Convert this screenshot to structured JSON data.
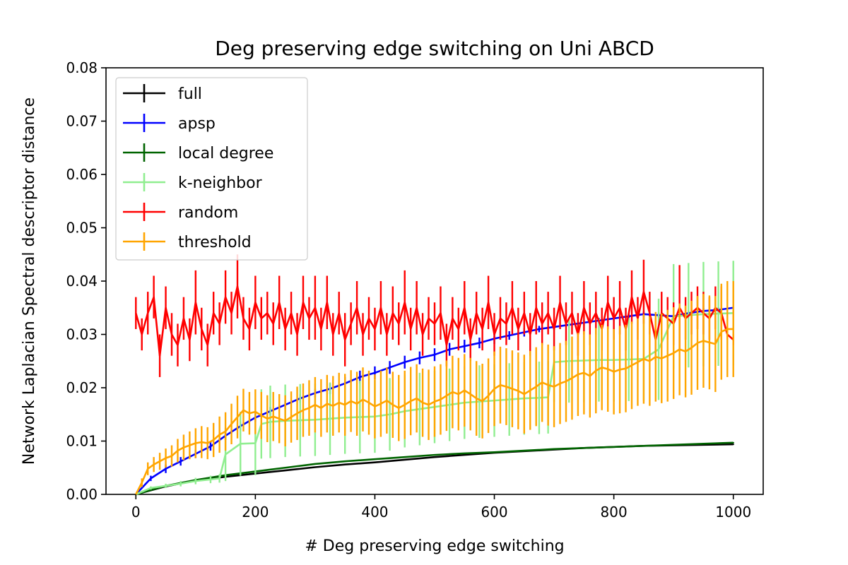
{
  "chart_data": {
    "type": "line",
    "title": "Deg preserving edge switching on Uni ABCD",
    "xlabel": "# Deg preserving edge switching",
    "ylabel": "Network Laplacian Spectral descriptor distance",
    "xlim": [
      -50,
      1050
    ],
    "ylim": [
      0,
      0.08
    ],
    "xticks": [
      0,
      200,
      400,
      600,
      800,
      1000
    ],
    "xtick_labels": [
      "0",
      "200",
      "400",
      "600",
      "800",
      "1000"
    ],
    "yticks": [
      0,
      0.01,
      0.02,
      0.03,
      0.04,
      0.05,
      0.06,
      0.07,
      0.08
    ],
    "ytick_labels": [
      "0.00",
      "0.01",
      "0.02",
      "0.03",
      "0.04",
      "0.05",
      "0.06",
      "0.07",
      "0.08"
    ],
    "grid": false,
    "legend_position": "top-left",
    "series": [
      {
        "name": "full",
        "color": "#000000",
        "x": [
          0,
          50,
          100,
          150,
          200,
          250,
          300,
          350,
          400,
          450,
          500,
          550,
          600,
          650,
          700,
          750,
          800,
          850,
          900,
          950,
          1000
        ],
        "y": [
          0.0,
          0.0015,
          0.0026,
          0.0033,
          0.0039,
          0.0045,
          0.0051,
          0.0056,
          0.006,
          0.0065,
          0.007,
          0.0074,
          0.0078,
          0.0081,
          0.0084,
          0.0087,
          0.0089,
          0.0091,
          0.0092,
          0.0093,
          0.0094
        ],
        "err": [
          0,
          0.0001,
          0.0001,
          0.0001,
          0.0001,
          0.0001,
          0.0001,
          0.0001,
          0.0001,
          0.0001,
          0.0001,
          0.0001,
          0.0001,
          0.0001,
          0.0001,
          0.0001,
          0.0001,
          0.0001,
          0.0001,
          0.0001,
          0.0001
        ]
      },
      {
        "name": "apsp",
        "color": "#0000ff",
        "x": [
          0,
          25,
          50,
          75,
          100,
          125,
          150,
          175,
          200,
          225,
          250,
          275,
          300,
          325,
          350,
          375,
          400,
          425,
          450,
          475,
          500,
          525,
          550,
          575,
          600,
          625,
          650,
          675,
          700,
          725,
          750,
          775,
          800,
          825,
          850,
          875,
          900,
          925,
          950,
          975,
          1000
        ],
        "y": [
          0.0,
          0.003,
          0.0048,
          0.0062,
          0.0076,
          0.009,
          0.011,
          0.0128,
          0.0144,
          0.0156,
          0.0168,
          0.018,
          0.019,
          0.0198,
          0.0208,
          0.022,
          0.0228,
          0.0238,
          0.0248,
          0.0256,
          0.0262,
          0.0272,
          0.0278,
          0.0284,
          0.0292,
          0.0298,
          0.0304,
          0.031,
          0.0314,
          0.0318,
          0.0322,
          0.0326,
          0.033,
          0.0334,
          0.0338,
          0.0336,
          0.0334,
          0.034,
          0.0344,
          0.0346,
          0.035
        ],
        "err": [
          0,
          0.0005,
          0.0008,
          0.0008,
          0.0008,
          0.0008,
          0.0008,
          0.0008,
          0.0008,
          0.0008,
          0.0008,
          0.0008,
          0.0008,
          0.001,
          0.0012,
          0.0012,
          0.0012,
          0.0012,
          0.0012,
          0.0012,
          0.0012,
          0.0012,
          0.0012,
          0.001,
          0.001,
          0.0008,
          0.0008,
          0.0006,
          0.0006,
          0.0005,
          0.0005,
          0.0005,
          0.0005,
          0.0005,
          0.0005,
          0.0005,
          0.0005,
          0.0005,
          0.0005,
          0.0005,
          0.0005
        ]
      },
      {
        "name": "local degree",
        "color": "#006400",
        "x": [
          0,
          50,
          100,
          150,
          200,
          250,
          300,
          350,
          400,
          450,
          500,
          550,
          600,
          650,
          700,
          750,
          800,
          850,
          900,
          950,
          1000
        ],
        "y": [
          0.0,
          0.0016,
          0.0027,
          0.0036,
          0.0043,
          0.005,
          0.0057,
          0.0062,
          0.0066,
          0.007,
          0.0074,
          0.0077,
          0.0079,
          0.0082,
          0.0085,
          0.0087,
          0.0089,
          0.0091,
          0.0093,
          0.0095,
          0.0097
        ],
        "err": [
          0,
          0.0001,
          0.0001,
          0.0001,
          0.0001,
          0.0001,
          0.0001,
          0.0001,
          0.0001,
          0.0001,
          0.0001,
          0.0001,
          0.0001,
          0.0001,
          0.0001,
          0.0001,
          0.0001,
          0.0001,
          0.0001,
          0.0001,
          0.0001
        ]
      },
      {
        "name": "k-neighbor",
        "color": "#90ee90",
        "x": [
          0,
          25,
          50,
          75,
          100,
          125,
          140,
          150,
          175,
          200,
          210,
          225,
          250,
          275,
          300,
          325,
          350,
          375,
          400,
          425,
          450,
          475,
          500,
          525,
          550,
          575,
          600,
          625,
          650,
          675,
          690,
          700,
          725,
          750,
          775,
          800,
          825,
          850,
          875,
          900,
          925,
          950,
          975,
          1000
        ],
        "y": [
          0.0,
          0.0012,
          0.0016,
          0.002,
          0.0025,
          0.0028,
          0.003,
          0.0075,
          0.0095,
          0.0096,
          0.0132,
          0.0136,
          0.0138,
          0.0139,
          0.014,
          0.0142,
          0.0144,
          0.0145,
          0.0146,
          0.015,
          0.0156,
          0.016,
          0.0164,
          0.0168,
          0.0172,
          0.0174,
          0.0176,
          0.0178,
          0.018,
          0.0181,
          0.0182,
          0.0248,
          0.025,
          0.0251,
          0.0252,
          0.0252,
          0.0253,
          0.0254,
          0.0272,
          0.0334,
          0.0336,
          0.0338,
          0.0339,
          0.034
        ],
        "err": [
          0,
          0.0003,
          0.0004,
          0.0005,
          0.0006,
          0.0007,
          0.0008,
          0.005,
          0.006,
          0.006,
          0.0065,
          0.0068,
          0.0068,
          0.0068,
          0.0068,
          0.0068,
          0.0068,
          0.0068,
          0.0068,
          0.0068,
          0.0068,
          0.0068,
          0.0068,
          0.0068,
          0.0068,
          0.0068,
          0.0068,
          0.0068,
          0.0068,
          0.0068,
          0.0068,
          0.0075,
          0.0078,
          0.0078,
          0.0078,
          0.0078,
          0.0078,
          0.0078,
          0.0095,
          0.0098,
          0.0098,
          0.0098,
          0.0098,
          0.0098
        ]
      },
      {
        "name": "random",
        "color": "#ff0000",
        "x": [
          0,
          10,
          20,
          30,
          40,
          50,
          60,
          70,
          80,
          90,
          100,
          110,
          120,
          130,
          140,
          150,
          160,
          170,
          180,
          190,
          200,
          210,
          220,
          230,
          240,
          250,
          260,
          270,
          280,
          290,
          300,
          310,
          320,
          330,
          340,
          350,
          360,
          370,
          380,
          390,
          400,
          410,
          420,
          430,
          440,
          450,
          460,
          470,
          480,
          490,
          500,
          510,
          520,
          530,
          540,
          550,
          560,
          570,
          580,
          590,
          600,
          610,
          620,
          630,
          640,
          650,
          660,
          670,
          680,
          690,
          700,
          710,
          720,
          730,
          740,
          750,
          760,
          770,
          780,
          790,
          800,
          810,
          820,
          830,
          840,
          850,
          860,
          870,
          880,
          890,
          900,
          910,
          920,
          930,
          940,
          950,
          960,
          970,
          980,
          990,
          1000
        ],
        "y": [
          0.034,
          0.03,
          0.034,
          0.037,
          0.026,
          0.035,
          0.03,
          0.028,
          0.033,
          0.029,
          0.036,
          0.031,
          0.028,
          0.034,
          0.032,
          0.037,
          0.034,
          0.039,
          0.033,
          0.031,
          0.036,
          0.033,
          0.034,
          0.032,
          0.036,
          0.031,
          0.034,
          0.03,
          0.036,
          0.033,
          0.035,
          0.031,
          0.036,
          0.03,
          0.034,
          0.029,
          0.032,
          0.035,
          0.03,
          0.033,
          0.031,
          0.035,
          0.03,
          0.034,
          0.032,
          0.036,
          0.031,
          0.035,
          0.03,
          0.033,
          0.032,
          0.034,
          0.028,
          0.033,
          0.031,
          0.035,
          0.029,
          0.034,
          0.031,
          0.036,
          0.03,
          0.033,
          0.032,
          0.035,
          0.031,
          0.034,
          0.03,
          0.035,
          0.032,
          0.034,
          0.031,
          0.036,
          0.032,
          0.034,
          0.03,
          0.035,
          0.032,
          0.034,
          0.031,
          0.036,
          0.033,
          0.035,
          0.031,
          0.037,
          0.033,
          0.038,
          0.034,
          0.029,
          0.034,
          0.033,
          0.032,
          0.035,
          0.033,
          0.034,
          0.035,
          0.034,
          0.033,
          0.035,
          0.034,
          0.03,
          0.029
        ],
        "err": [
          0.003,
          0.003,
          0.004,
          0.004,
          0.004,
          0.004,
          0.004,
          0.004,
          0.004,
          0.004,
          0.006,
          0.004,
          0.004,
          0.004,
          0.004,
          0.005,
          0.004,
          0.006,
          0.004,
          0.004,
          0.005,
          0.004,
          0.004,
          0.004,
          0.005,
          0.004,
          0.004,
          0.004,
          0.005,
          0.004,
          0.006,
          0.004,
          0.005,
          0.004,
          0.004,
          0.005,
          0.004,
          0.005,
          0.004,
          0.004,
          0.004,
          0.005,
          0.004,
          0.005,
          0.004,
          0.006,
          0.004,
          0.005,
          0.004,
          0.004,
          0.004,
          0.005,
          0.004,
          0.004,
          0.004,
          0.005,
          0.004,
          0.004,
          0.004,
          0.005,
          0.004,
          0.004,
          0.004,
          0.005,
          0.004,
          0.004,
          0.004,
          0.005,
          0.004,
          0.004,
          0.004,
          0.005,
          0.004,
          0.004,
          0.004,
          0.005,
          0.004,
          0.004,
          0.004,
          0.005,
          0.004,
          0.005,
          0.004,
          0.005,
          0.004,
          0.006,
          0.004,
          0.004,
          0.004,
          0.004,
          0.004,
          0.008,
          0.004,
          0.004,
          0.004,
          0.004,
          0.004,
          0.004,
          0.005,
          0.001,
          0.001
        ]
      },
      {
        "name": "threshold",
        "color": "#ffa500",
        "x": [
          0,
          10,
          20,
          30,
          40,
          50,
          60,
          70,
          80,
          90,
          100,
          110,
          120,
          130,
          140,
          150,
          160,
          170,
          180,
          190,
          200,
          210,
          220,
          230,
          240,
          250,
          260,
          270,
          280,
          290,
          300,
          310,
          320,
          330,
          340,
          350,
          360,
          370,
          380,
          390,
          400,
          410,
          420,
          430,
          440,
          450,
          460,
          470,
          480,
          490,
          500,
          510,
          520,
          530,
          540,
          550,
          560,
          570,
          580,
          590,
          600,
          610,
          620,
          630,
          640,
          650,
          660,
          670,
          680,
          690,
          700,
          710,
          720,
          730,
          740,
          750,
          760,
          770,
          780,
          790,
          800,
          810,
          820,
          830,
          840,
          850,
          860,
          870,
          880,
          890,
          900,
          910,
          920,
          930,
          940,
          950,
          960,
          970,
          980,
          990,
          1000
        ],
        "y": [
          0.0,
          0.0022,
          0.0048,
          0.0056,
          0.0062,
          0.0068,
          0.0072,
          0.0082,
          0.0088,
          0.0092,
          0.0096,
          0.0098,
          0.0096,
          0.0102,
          0.0112,
          0.0118,
          0.0132,
          0.0145,
          0.0158,
          0.0152,
          0.0155,
          0.0148,
          0.0142,
          0.0146,
          0.0142,
          0.0138,
          0.0145,
          0.0152,
          0.0158,
          0.0162,
          0.0168,
          0.0162,
          0.017,
          0.0166,
          0.0172,
          0.0168,
          0.0175,
          0.017,
          0.0178,
          0.0172,
          0.0165,
          0.017,
          0.0176,
          0.0168,
          0.0162,
          0.0168,
          0.0175,
          0.018,
          0.0172,
          0.0168,
          0.0174,
          0.0178,
          0.0185,
          0.0192,
          0.0188,
          0.0195,
          0.0188,
          0.018,
          0.0175,
          0.0185,
          0.0198,
          0.0205,
          0.0202,
          0.0198,
          0.0194,
          0.0188,
          0.0195,
          0.0202,
          0.021,
          0.0205,
          0.0202,
          0.0208,
          0.0212,
          0.0218,
          0.0225,
          0.0228,
          0.0222,
          0.0232,
          0.0238,
          0.0235,
          0.023,
          0.0234,
          0.0236,
          0.0242,
          0.0248,
          0.0254,
          0.025,
          0.0258,
          0.0255,
          0.026,
          0.0265,
          0.0272,
          0.0268,
          0.0275,
          0.0284,
          0.0288,
          0.0285,
          0.0282,
          0.0305,
          0.031,
          0.031
        ],
        "err": [
          0,
          0.0008,
          0.0012,
          0.0014,
          0.0016,
          0.0018,
          0.002,
          0.0022,
          0.0024,
          0.0026,
          0.0028,
          0.003,
          0.003,
          0.0032,
          0.0034,
          0.0036,
          0.0038,
          0.004,
          0.004,
          0.004,
          0.0042,
          0.0044,
          0.0044,
          0.0046,
          0.0046,
          0.0048,
          0.0048,
          0.005,
          0.005,
          0.0052,
          0.0052,
          0.0054,
          0.0054,
          0.0056,
          0.0056,
          0.0058,
          0.0058,
          0.006,
          0.006,
          0.006,
          0.006,
          0.0062,
          0.0062,
          0.0062,
          0.0062,
          0.0064,
          0.0064,
          0.0064,
          0.0064,
          0.0066,
          0.0066,
          0.0066,
          0.0066,
          0.0068,
          0.0068,
          0.0068,
          0.0068,
          0.007,
          0.007,
          0.007,
          0.007,
          0.0072,
          0.0072,
          0.0072,
          0.0072,
          0.0074,
          0.0074,
          0.0074,
          0.0074,
          0.0076,
          0.0076,
          0.0076,
          0.0076,
          0.0078,
          0.0078,
          0.0078,
          0.0078,
          0.008,
          0.008,
          0.008,
          0.008,
          0.0082,
          0.0082,
          0.0082,
          0.0082,
          0.0084,
          0.0084,
          0.0084,
          0.0084,
          0.0086,
          0.0086,
          0.0086,
          0.0086,
          0.0088,
          0.0088,
          0.0088,
          0.0088,
          0.009,
          0.009,
          0.009,
          0.009
        ]
      }
    ]
  }
}
